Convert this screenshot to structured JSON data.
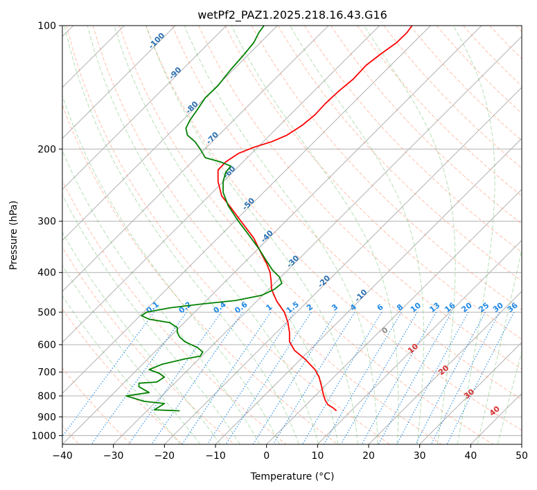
{
  "chart_data": {
    "type": "line",
    "title": "wetPf2_PAZ1.2025.218.16.43.G16",
    "xlabel": "Temperature (°C)",
    "ylabel": "Pressure (hPa)",
    "xlim": [
      -40,
      50
    ],
    "ylim": [
      1050,
      100
    ],
    "y_scale": "log",
    "grid": true,
    "x_ticks": [
      -40,
      -30,
      -20,
      -10,
      0,
      10,
      20,
      30,
      40,
      50
    ],
    "y_ticks": [
      100,
      200,
      300,
      400,
      500,
      600,
      700,
      800,
      900,
      1000
    ],
    "series": [
      {
        "color": "#ff0000",
        "points": [
          [
            13.7,
            870
          ],
          [
            13.0,
            855
          ],
          [
            12.0,
            840
          ],
          [
            11.5,
            820
          ],
          [
            11.2,
            800
          ],
          [
            10.8,
            760
          ],
          [
            10.3,
            720
          ],
          [
            9.5,
            690
          ],
          [
            7.5,
            650
          ],
          [
            5.5,
            620
          ],
          [
            4.5,
            590
          ],
          [
            4.5,
            560
          ],
          [
            4.2,
            530
          ],
          [
            3.5,
            500
          ],
          [
            2.0,
            470
          ],
          [
            1.0,
            440
          ],
          [
            0.9,
            420
          ],
          [
            0.7,
            400
          ],
          [
            0.0,
            380
          ],
          [
            -1.0,
            360
          ],
          [
            -2.5,
            330
          ],
          [
            -5.0,
            300
          ],
          [
            -6.8,
            280
          ],
          [
            -8.8,
            260
          ],
          [
            -9.5,
            240
          ],
          [
            -9.5,
            225
          ],
          [
            -8.0,
            215
          ],
          [
            -5.5,
            205
          ],
          [
            -2.5,
            198
          ],
          [
            1.0,
            192
          ],
          [
            4.0,
            185
          ],
          [
            7.0,
            175
          ],
          [
            9.5,
            165
          ],
          [
            11.5,
            155
          ],
          [
            14.0,
            145
          ],
          [
            17.0,
            135
          ],
          [
            19.5,
            125
          ],
          [
            22.5,
            117
          ],
          [
            25.5,
            110
          ],
          [
            27.5,
            104
          ],
          [
            28.5,
            100
          ]
        ]
      },
      {
        "color": "#008000",
        "points": [
          [
            -17.0,
            870
          ],
          [
            -22.0,
            865
          ],
          [
            -21.0,
            850
          ],
          [
            -20.0,
            835
          ],
          [
            -24.0,
            825
          ],
          [
            -27.5,
            800
          ],
          [
            -23.0,
            785
          ],
          [
            -25.0,
            760
          ],
          [
            -25.0,
            745
          ],
          [
            -21.5,
            740
          ],
          [
            -20.0,
            720
          ],
          [
            -21.0,
            705
          ],
          [
            -23.0,
            690
          ],
          [
            -20.5,
            670
          ],
          [
            -16.0,
            650
          ],
          [
            -13.0,
            640
          ],
          [
            -12.5,
            625
          ],
          [
            -13.5,
            610
          ],
          [
            -16.0,
            590
          ],
          [
            -17.0,
            575
          ],
          [
            -17.5,
            560
          ],
          [
            -17.5,
            545
          ],
          [
            -19.0,
            530
          ],
          [
            -23.0,
            520
          ],
          [
            -24.5,
            510
          ],
          [
            -23.5,
            500
          ],
          [
            -19.0,
            488
          ],
          [
            -13.0,
            478
          ],
          [
            -6.0,
            468
          ],
          [
            -1.0,
            455
          ],
          [
            1.5,
            440
          ],
          [
            3.0,
            425
          ],
          [
            2.5,
            410
          ],
          [
            1.2,
            395
          ],
          [
            0.0,
            375
          ],
          [
            -1.5,
            350
          ],
          [
            -3.8,
            320
          ],
          [
            -5.5,
            300
          ],
          [
            -7.5,
            275
          ],
          [
            -8.5,
            255
          ],
          [
            -8.5,
            240
          ],
          [
            -8.0,
            228
          ],
          [
            -7.0,
            220
          ],
          [
            -9.0,
            215
          ],
          [
            -12.0,
            210
          ],
          [
            -13.0,
            200
          ],
          [
            -14.0,
            192
          ],
          [
            -15.5,
            185
          ],
          [
            -15.8,
            178
          ],
          [
            -15.0,
            170
          ],
          [
            -13.5,
            160
          ],
          [
            -12.0,
            150
          ],
          [
            -9.5,
            140
          ],
          [
            -7.0,
            128
          ],
          [
            -4.5,
            118
          ],
          [
            -2.5,
            110
          ],
          [
            -1.5,
            104
          ],
          [
            -0.5,
            100
          ]
        ]
      }
    ],
    "dry_adiabat_labels": [
      "-100",
      "-90",
      "-80",
      "-70",
      "-60",
      "-50",
      "-40",
      "-30",
      "-20",
      "-10"
    ],
    "mixing_ratio_labels": [
      "0.1",
      "0.2",
      "0.4",
      "0.6",
      "1",
      "1.5",
      "2",
      "3",
      "4",
      "6",
      "8",
      "10",
      "13",
      "16",
      "20",
      "25",
      "30",
      "36"
    ],
    "moist_adiabat_labels": [
      "0",
      "10",
      "20",
      "30",
      "40"
    ]
  }
}
